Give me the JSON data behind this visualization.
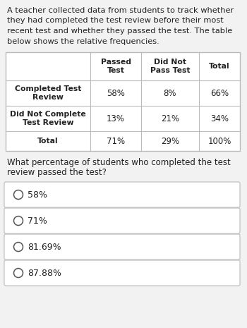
{
  "intro_lines": [
    "A teacher collected data from students to track whether",
    "they had completed the test review before their most",
    "recent test and whether they passed the test. The table",
    "below shows the relative frequencies."
  ],
  "table": {
    "col_headers": [
      "Passed\nTest",
      "Did Not\nPass Test",
      "Total"
    ],
    "row_headers": [
      "Completed Test\nReview",
      "Did Not Complete\nTest Review",
      "Total"
    ],
    "data": [
      [
        "58%",
        "8%",
        "66%"
      ],
      [
        "13%",
        "21%",
        "34%"
      ],
      [
        "71%",
        "29%",
        "100%"
      ]
    ]
  },
  "question_lines": [
    "What percentage of students who completed the test",
    "review passed the test?"
  ],
  "options": [
    "58%",
    "71%",
    "81.69%",
    "87.88%"
  ],
  "bg_color": "#f2f2f2",
  "table_bg": "#ffffff",
  "option_bg": "#ffffff",
  "border_color": "#bbbbbb",
  "text_color": "#222222",
  "header_fontsize": 7.8,
  "data_fontsize": 8.5,
  "row_header_fontsize": 7.8,
  "option_fontsize": 9.0,
  "intro_fontsize": 8.2,
  "question_fontsize": 8.5
}
